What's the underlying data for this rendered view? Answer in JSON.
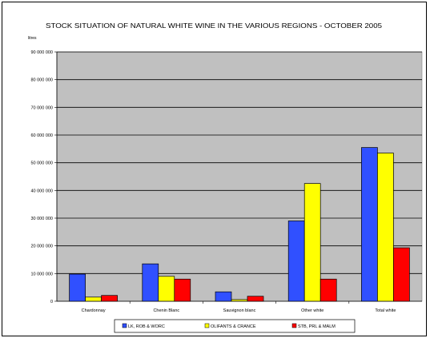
{
  "chart_data": {
    "type": "bar",
    "title": "STOCK SITUATION OF NATURAL WHITE WINE IN THE VARIOUS REGIONS - OCTOBER 2005",
    "ylabel": "litres",
    "xlabel": "",
    "categories": [
      "Chardonnay",
      "Chenin Blanc",
      "Sauvignon blanc",
      "Other white",
      "Total white"
    ],
    "ylim": [
      0,
      90000000
    ],
    "yticks": [
      0,
      10000000,
      20000000,
      30000000,
      40000000,
      50000000,
      60000000,
      70000000,
      80000000,
      90000000
    ],
    "ytick_labels": [
      "0",
      "10 000 000",
      "20 000 000",
      "30 000 000",
      "40 000 000",
      "50 000 000",
      "60 000 000",
      "70 000 000",
      "80 000 000",
      "90 000 000"
    ],
    "grid": true,
    "legend_position": "bottom",
    "plot_background": "#c0c0c0",
    "series": [
      {
        "name": "LK, ROB & WORC",
        "color": "#3050ff",
        "values": [
          9800000,
          13500000,
          3400000,
          29000000,
          55500000
        ]
      },
      {
        "name": "OLIFANTS & CRANCE",
        "color": "#ffff00",
        "values": [
          1500000,
          9000000,
          600000,
          42500000,
          53500000
        ]
      },
      {
        "name": "STB, PRL & MALM",
        "color": "#ff0000",
        "values": [
          2100000,
          8000000,
          1800000,
          8000000,
          19300000
        ]
      }
    ]
  }
}
